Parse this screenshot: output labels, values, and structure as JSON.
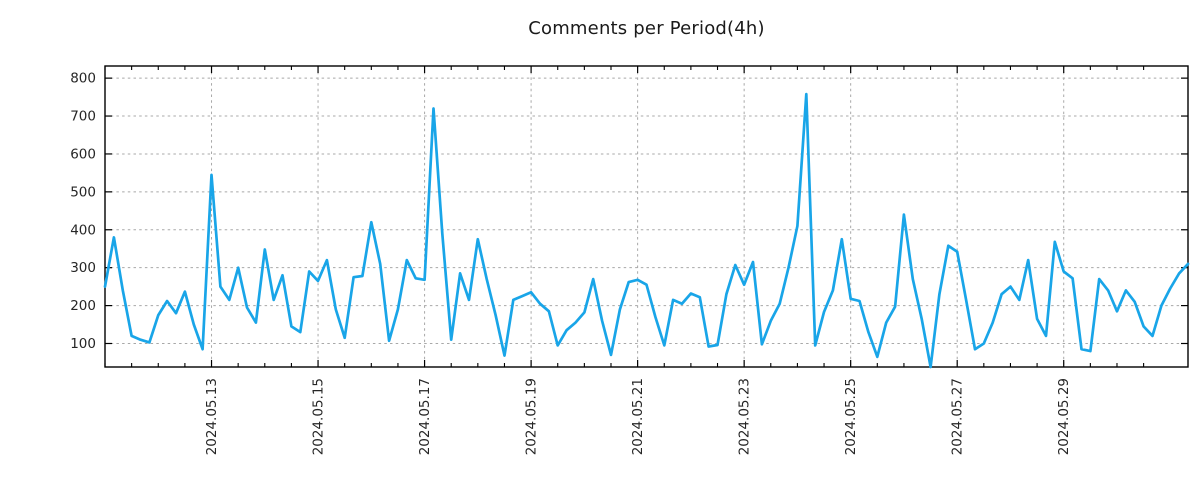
{
  "title": "Comments per Period(4h)",
  "chart_data": {
    "type": "line",
    "title": "Comments per Period(4h)",
    "x_start": "2024-05-11 00:00",
    "x_interval_hours": 4,
    "series": [
      {
        "name": "comments",
        "color": "#19a5e8",
        "values": [
          250,
          380,
          240,
          120,
          110,
          103,
          175,
          212,
          180,
          237,
          150,
          85,
          545,
          250,
          215,
          300,
          195,
          155,
          348,
          215,
          280,
          145,
          130,
          290,
          265,
          320,
          190,
          115,
          275,
          278,
          420,
          310,
          107,
          190,
          320,
          272,
          268,
          720,
          390,
          110,
          285,
          215,
          375,
          270,
          175,
          68,
          215,
          225,
          235,
          205,
          185,
          95,
          135,
          155,
          182,
          270,
          160,
          70,
          190,
          262,
          268,
          255,
          170,
          95,
          215,
          205,
          232,
          222,
          92,
          96,
          230,
          307,
          255,
          315,
          98,
          160,
          205,
          300,
          410,
          758,
          95,
          183,
          240,
          375,
          218,
          212,
          130,
          65,
          155,
          197,
          440,
          270,
          165,
          38,
          230,
          358,
          342,
          215,
          85,
          100,
          155,
          230,
          250,
          215,
          320,
          165,
          120,
          368,
          290,
          272,
          85,
          80,
          270,
          240,
          185,
          240,
          210,
          145,
          120,
          200,
          245,
          285,
          310
        ]
      }
    ],
    "x_tick_labels": [
      "2024.05.13",
      "2024.05.15",
      "2024.05.17",
      "2024.05.19",
      "2024.05.21",
      "2024.05.23",
      "2024.05.25",
      "2024.05.27",
      "2024.05.29"
    ],
    "x_tick_indices": [
      12,
      24,
      36,
      48,
      60,
      72,
      84,
      96,
      108
    ],
    "x_minor_tick_every_points": 3,
    "x_minor_tick_last_index": 117,
    "y_ticks": [
      100,
      200,
      300,
      400,
      500,
      600,
      700,
      800
    ],
    "y_range": [
      38,
      832
    ],
    "grid": "dashed",
    "legend": "none"
  },
  "style": {
    "line_color": "#19a5e8",
    "grid_color": "#a8a8a8",
    "axis_color": "#000000",
    "text_color": "#262626",
    "background": "#ffffff"
  }
}
